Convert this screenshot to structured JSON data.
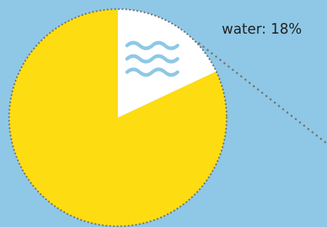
{
  "colors": {
    "background": "#8ec8e6",
    "main_slice": "#fddc12",
    "highlight_slice": "#ffffff",
    "icon": "#8ec8e6",
    "border": "#777777"
  },
  "chart_data": {
    "type": "pie",
    "slices": [
      {
        "name": "water",
        "value": 18,
        "color": "#ffffff",
        "icon": "water-waves-icon",
        "label": "water: 18%"
      },
      {
        "name": "",
        "value": 82,
        "color": "#fddc12"
      }
    ]
  }
}
